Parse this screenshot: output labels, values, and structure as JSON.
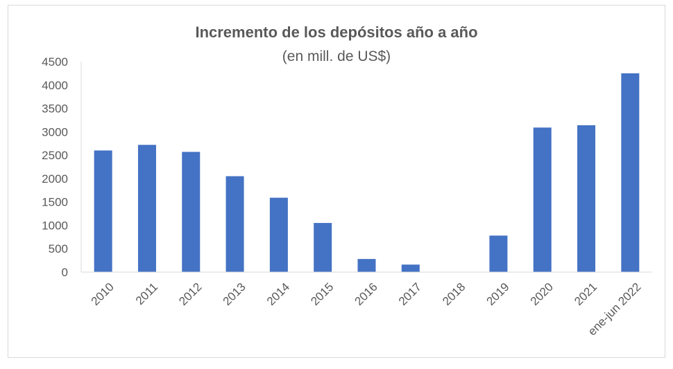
{
  "chart_data": {
    "type": "bar",
    "title": "Incremento de los depósitos año a año",
    "subtitle": "(en mill. de US$)",
    "xlabel": "",
    "ylabel": "",
    "categories": [
      "2010",
      "2011",
      "2012",
      "2013",
      "2014",
      "2015",
      "2016",
      "2017",
      "2018",
      "2019",
      "2020",
      "2021",
      "ene-jun 2022"
    ],
    "values": [
      2600,
      2720,
      2570,
      2050,
      1590,
      1050,
      280,
      160,
      0,
      780,
      3090,
      3140,
      4250
    ],
    "ylim": [
      0,
      4500
    ],
    "yticks": [
      0,
      500,
      1000,
      1500,
      2000,
      2500,
      3000,
      3500,
      4000,
      4500
    ],
    "grid": false,
    "legend": "none",
    "colors": {
      "bar": "#4472C4",
      "axis": "#d9d9d9",
      "text": "#595959",
      "frame": "#d9d9d9"
    }
  }
}
